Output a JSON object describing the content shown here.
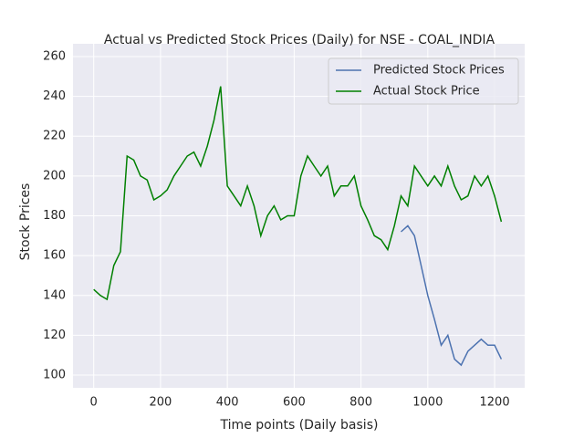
{
  "chart_data": {
    "type": "line",
    "title": "Actual vs Predicted Stock Prices (Daily) for NSE - COAL_INDIA",
    "x_label": "Time points (Daily basis)",
    "y_label": "Stock Prices",
    "x": [
      0,
      20,
      40,
      60,
      80,
      100,
      120,
      140,
      160,
      180,
      200,
      220,
      240,
      260,
      280,
      300,
      320,
      340,
      360,
      380,
      400,
      420,
      440,
      460,
      480,
      500,
      520,
      540,
      560,
      580,
      600,
      620,
      640,
      660,
      680,
      700,
      720,
      740,
      760,
      780,
      800,
      820,
      840,
      860,
      880,
      900,
      920,
      940,
      960,
      980,
      1000,
      1020,
      1040,
      1060,
      1080,
      1100,
      1120,
      1140,
      1160,
      1180,
      1200,
      1220
    ],
    "series": [
      {
        "name": "Predicted Stock Prices",
        "color": "#4c72b0",
        "values": [
          null,
          null,
          null,
          null,
          null,
          null,
          null,
          null,
          null,
          null,
          null,
          null,
          null,
          null,
          null,
          null,
          null,
          null,
          null,
          null,
          null,
          null,
          null,
          null,
          null,
          null,
          null,
          null,
          null,
          null,
          null,
          null,
          null,
          null,
          null,
          null,
          null,
          null,
          null,
          null,
          null,
          null,
          null,
          null,
          null,
          null,
          172,
          175,
          170,
          155,
          140,
          128,
          115,
          120,
          108,
          105,
          112,
          115,
          118,
          115,
          115,
          108
        ]
      },
      {
        "name": "Actual Stock Price",
        "color": "#008000",
        "values": [
          143,
          140,
          138,
          155,
          162,
          210,
          208,
          200,
          198,
          188,
          190,
          193,
          200,
          205,
          210,
          212,
          205,
          215,
          228,
          245,
          195,
          190,
          185,
          195,
          185,
          170,
          180,
          185,
          178,
          180,
          180,
          200,
          210,
          205,
          200,
          205,
          190,
          195,
          195,
          200,
          185,
          178,
          170,
          168,
          163,
          175,
          190,
          185,
          205,
          200,
          195,
          200,
          195,
          205,
          195,
          188,
          190,
          200,
          195,
          200,
          190,
          177
        ]
      }
    ],
    "xlim": [
      -62,
      1290
    ],
    "ylim": [
      93.6,
      266.4
    ],
    "xticks": [
      0,
      200,
      400,
      600,
      800,
      1000,
      1200
    ],
    "yticks": [
      100,
      120,
      140,
      160,
      180,
      200,
      220,
      240,
      260
    ],
    "grid": true,
    "legend": "upper right"
  }
}
